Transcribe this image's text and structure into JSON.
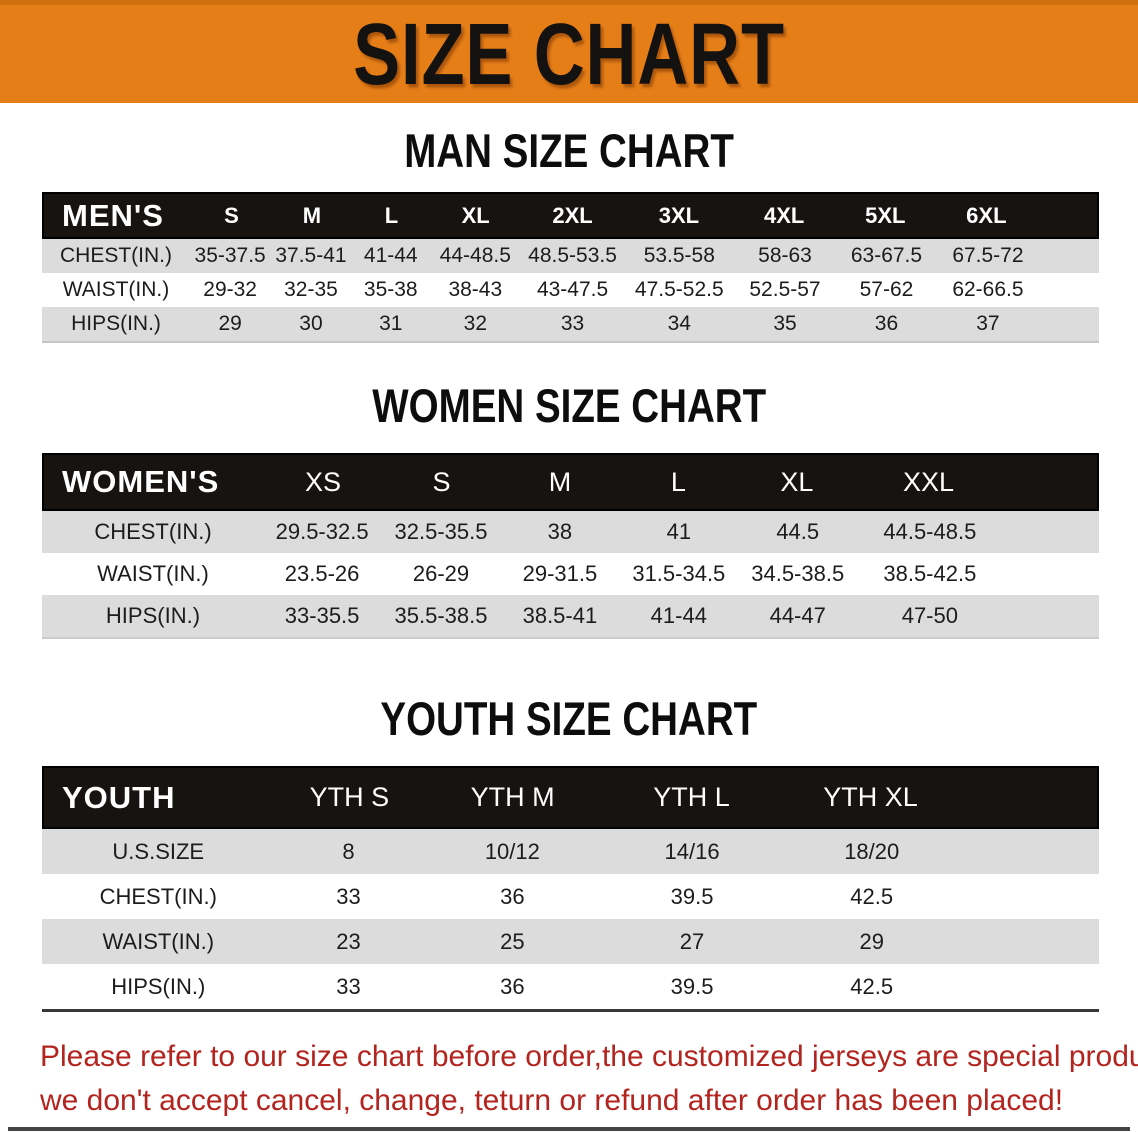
{
  "banner": {
    "title": "SIZE CHART",
    "bg_color": "#E67E18",
    "text_color": "#141210"
  },
  "colors": {
    "header_bar_bg": "#171310",
    "header_bar_text": "#ffffff",
    "row_shade": "#DCDCDC",
    "disclaimer_red": "#B3241F"
  },
  "sections": [
    {
      "id": "mens",
      "heading": "MAN SIZE CHART",
      "table": {
        "header_label": "MEN'S",
        "columns": [
          "S",
          "M",
          "L",
          "XL",
          "2XL",
          "3XL",
          "4XL",
          "5XL",
          "6XL"
        ],
        "rows": [
          {
            "label": "CHEST(IN.)",
            "values": [
              "35-37.5",
              "37.5-41",
              "41-44",
              "44-48.5",
              "48.5-53.5",
              "53.5-58",
              "58-63",
              "63-67.5",
              "67.5-72"
            ]
          },
          {
            "label": "WAIST(IN.)",
            "values": [
              "29-32",
              "32-35",
              "35-38",
              "38-43",
              "43-47.5",
              "47.5-52.5",
              "52.5-57",
              "57-62",
              "62-66.5"
            ]
          },
          {
            "label": "HIPS(IN.)",
            "values": [
              "29",
              "30",
              "31",
              "32",
              "33",
              "34",
              "35",
              "36",
              "37"
            ]
          }
        ]
      }
    },
    {
      "id": "womens",
      "heading": "WOMEN SIZE CHART",
      "table": {
        "header_label": "WOMEN'S",
        "columns": [
          "XS",
          "S",
          "M",
          "L",
          "XL",
          "XXL"
        ],
        "rows": [
          {
            "label": "CHEST(IN.)",
            "values": [
              "29.5-32.5",
              "32.5-35.5",
              "38",
              "41",
              "44.5",
              "44.5-48.5"
            ]
          },
          {
            "label": "WAIST(IN.)",
            "values": [
              "23.5-26",
              "26-29",
              "29-31.5",
              "31.5-34.5",
              "34.5-38.5",
              "38.5-42.5"
            ]
          },
          {
            "label": "HIPS(IN.)",
            "values": [
              "33-35.5",
              "35.5-38.5",
              "38.5-41",
              "41-44",
              "44-47",
              "47-50"
            ]
          }
        ]
      }
    },
    {
      "id": "youth",
      "heading": "YOUTH SIZE CHART",
      "table": {
        "header_label": "YOUTH",
        "columns": [
          "YTH S",
          "YTH M",
          "YTH L",
          "YTH XL"
        ],
        "rows": [
          {
            "label": "U.S.SIZE",
            "values": [
              "8",
              "10/12",
              "14/16",
              "18/20"
            ]
          },
          {
            "label": "CHEST(IN.)",
            "values": [
              "33",
              "36",
              "39.5",
              "42.5"
            ]
          },
          {
            "label": "WAIST(IN.)",
            "values": [
              "23",
              "25",
              "27",
              "29"
            ]
          },
          {
            "label": "HIPS(IN.)",
            "values": [
              "33",
              "36",
              "39.5",
              "42.5"
            ]
          }
        ]
      }
    }
  ],
  "footer": {
    "line1": "Please refer to our size chart before order,the customized jerseys are special products,",
    "line2": "we don't accept cancel, change, teturn or refund after order has been placed!"
  }
}
